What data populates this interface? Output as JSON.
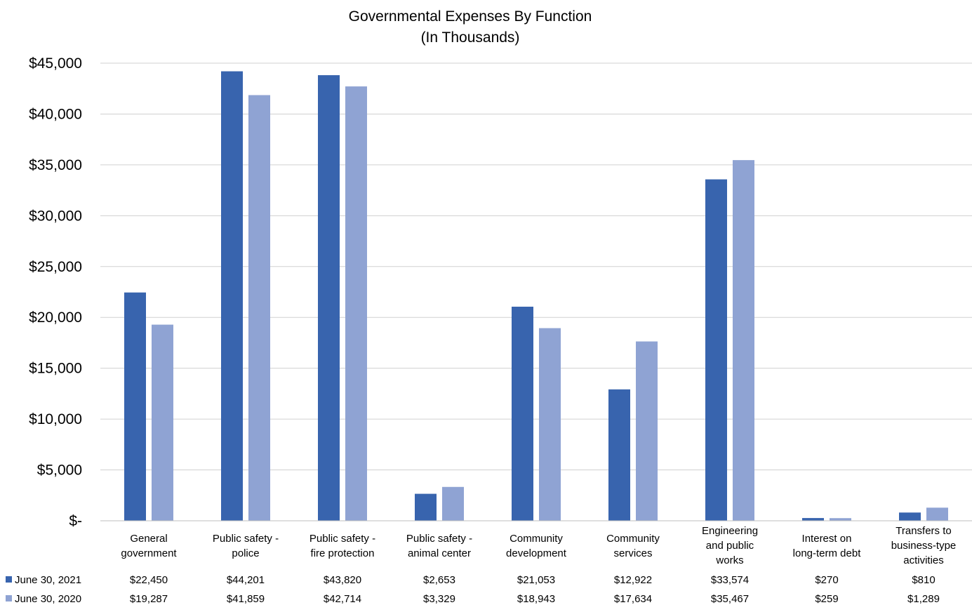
{
  "chart_data": {
    "type": "bar",
    "title": "Governmental Expenses By Function",
    "subtitle": "(In Thousands)",
    "xlabel": "",
    "ylabel": "",
    "ylim": [
      0,
      45000
    ],
    "yticks": [
      "$-",
      "$5,000",
      "$10,000",
      "$15,000",
      "$20,000",
      "$25,000",
      "$30,000",
      "$35,000",
      "$40,000",
      "$45,000"
    ],
    "grid": true,
    "legend": "data-table-left",
    "categories": [
      [
        "General",
        "government"
      ],
      [
        "Public safety -",
        "police"
      ],
      [
        "Public safety -",
        "fire protection"
      ],
      [
        "Public safety -",
        "animal center"
      ],
      [
        "Community",
        "development"
      ],
      [
        "Community",
        "services"
      ],
      [
        "Engineering",
        "and public",
        "works"
      ],
      [
        "Interest on",
        "long-term debt"
      ],
      [
        "Transfers to",
        "business-type",
        "activities"
      ]
    ],
    "series": [
      {
        "name": "June 30, 2021",
        "color": "#3864ae",
        "values": [
          22450,
          44201,
          43820,
          2653,
          21053,
          12922,
          33574,
          270,
          810
        ],
        "labels": [
          "$22,450",
          "$44,201",
          "$43,820",
          "$2,653",
          "$21,053",
          "$12,922",
          "$33,574",
          "$270",
          "$810"
        ]
      },
      {
        "name": "June 30, 2020",
        "color": "#8fa3d3",
        "values": [
          19287,
          41859,
          42714,
          3329,
          18943,
          17634,
          35467,
          259,
          1289
        ],
        "labels": [
          "$19,287",
          "$41,859",
          "$42,714",
          "$3,329",
          "$18,943",
          "$17,634",
          "$35,467",
          "$259",
          "$1,289"
        ]
      }
    ]
  }
}
